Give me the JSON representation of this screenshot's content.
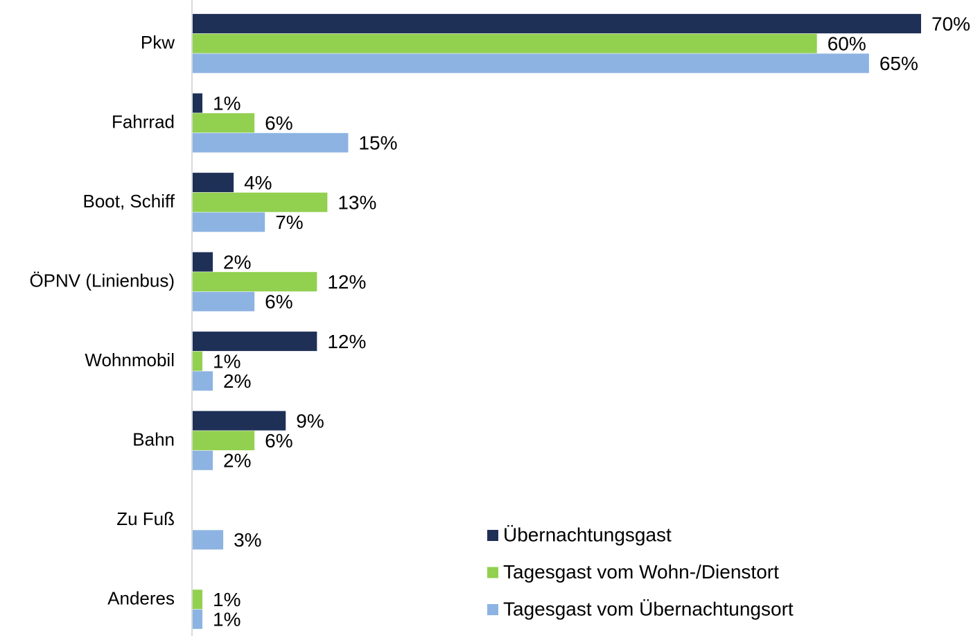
{
  "chart_data": {
    "type": "bar",
    "orientation": "horizontal",
    "categories": [
      "Pkw",
      "Fahrrad",
      "Boot, Schiff",
      "ÖPNV (Linienbus)",
      "Wohnmobil",
      "Bahn",
      "Zu Fuß",
      "Anderes"
    ],
    "series": [
      {
        "name": "Übernachtungsgast",
        "color": "#1f3057",
        "values": [
          70,
          1,
          4,
          2,
          12,
          9,
          null,
          null
        ],
        "value_labels": [
          "70%",
          "1%",
          "4%",
          "2%",
          "12%",
          "9%",
          null,
          null
        ]
      },
      {
        "name": "Tagesgast vom Wohn-/Dienstort",
        "color": "#92d050",
        "values": [
          60,
          6,
          13,
          12,
          1,
          6,
          null,
          1
        ],
        "value_labels": [
          "60%",
          "6%",
          "13%",
          "12%",
          "1%",
          "6%",
          null,
          "1%"
        ]
      },
      {
        "name": "Tagesgast vom Übernachtungsort",
        "color": "#8db3e2",
        "values": [
          65,
          15,
          7,
          6,
          2,
          2,
          3,
          1
        ],
        "value_labels": [
          "65%",
          "15%",
          "7%",
          "6%",
          "2%",
          "2%",
          "3%",
          "1%"
        ]
      }
    ],
    "legend": "bottom-right"
  }
}
